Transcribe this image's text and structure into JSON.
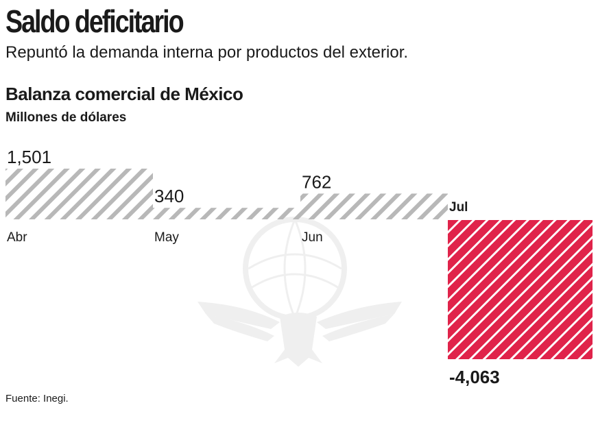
{
  "header": {
    "title": "Saldo deficitario",
    "subtitle": "Repuntó la demanda interna por productos del exterior."
  },
  "source": "Fuente: Inegi.",
  "colors": {
    "positive_stripe": "#b8b8b8",
    "negative_fill": "#e0234a",
    "negative_stripe": "#ffffff",
    "text": "#1a1a1a"
  },
  "watermark_icon": "eagle-globe-logo",
  "chart_data": {
    "type": "bar",
    "title": "Balanza comercial de México",
    "subtitle": "Millones de dólares",
    "categories": [
      "Abr",
      "May",
      "Jun",
      "Jul"
    ],
    "values": [
      1501,
      340,
      762,
      -4063
    ],
    "value_labels": [
      "1,501",
      "340",
      "762",
      "-4,063"
    ],
    "ylim": [
      -4063,
      1501
    ],
    "grid": false,
    "legend": "none"
  }
}
